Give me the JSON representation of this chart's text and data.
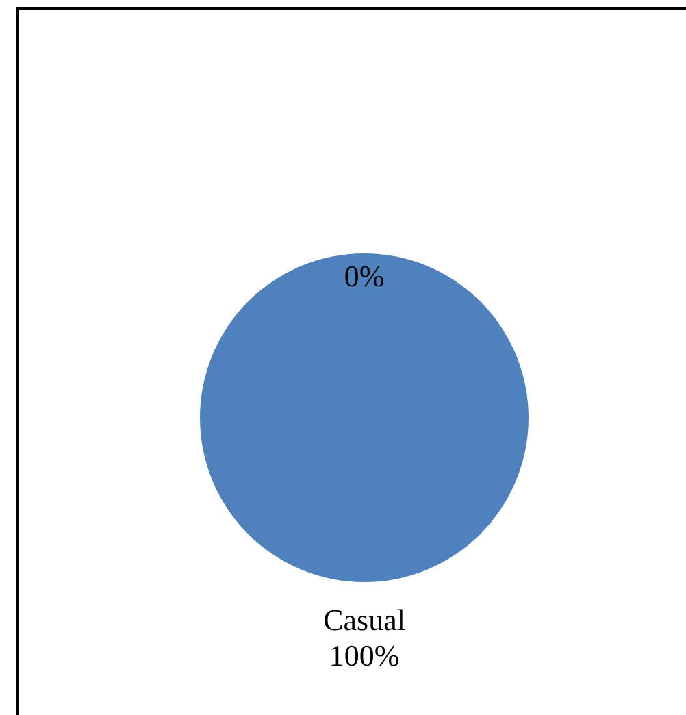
{
  "chart_data": {
    "type": "pie",
    "categories": [
      null,
      "Casual"
    ],
    "values": [
      0,
      100
    ],
    "colors": [
      "#4f81bd",
      "#4f81bd"
    ],
    "value_labels": [
      "0%",
      "100%"
    ],
    "legend": false
  }
}
